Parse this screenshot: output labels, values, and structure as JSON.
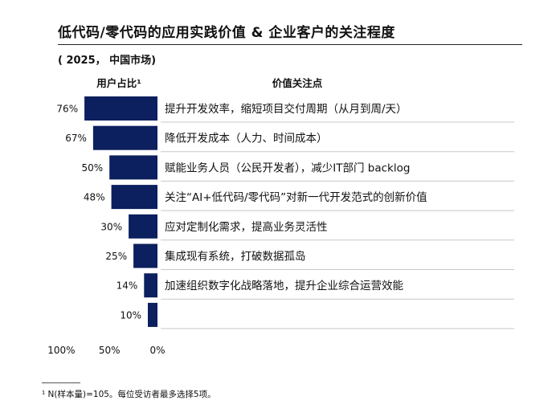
{
  "title": "低代码/零代码的应用实践价值 & 企业客户的关注程度",
  "subtitle": "( 2025， 中国市场)",
  "footnote": "¹ N(样本量)=105。每位受访者最多选择5项。",
  "chart_data": {
    "type": "bar",
    "orientation": "horizontal",
    "direction": "right-to-left",
    "left_header": "用户占比¹",
    "right_header": "价值关注点",
    "categories": [
      "提升开发效率，缩短项目交付周期（从月到周/天）",
      "降低开发成本（人力、时间成本）",
      "赋能业务人员（公民开发者），减少IT部门 backlog",
      "关注“AI+低代码/零代码”对新一代开发范式的创新价值",
      "应对定制化需求，提高业务灵活性",
      "集成现有系统，打破数据孤岛",
      "加速组织数字化战略落地，提升企业综合运营效能",
      ""
    ],
    "values": [
      76,
      67,
      50,
      48,
      30,
      25,
      14,
      10
    ],
    "value_labels": [
      "76%",
      "67%",
      "50%",
      "48%",
      "30%",
      "25%",
      "14%",
      "10%"
    ],
    "unit": "%",
    "xlim": [
      0,
      100
    ],
    "ticks": [
      "100%",
      "50%",
      "0%"
    ],
    "grid": false,
    "bar_color": "#0c1f5e",
    "separator_color": "#c8c8c8"
  }
}
